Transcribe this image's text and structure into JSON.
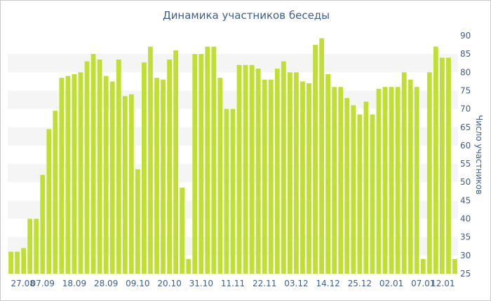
{
  "chart_data": {
    "type": "bar",
    "title": "Динамика участников беседы",
    "ylabel": "Число участников",
    "xlabel": "",
    "ylim": [
      25,
      90
    ],
    "yticks": [
      25,
      30,
      35,
      40,
      45,
      50,
      55,
      60,
      65,
      70,
      75,
      80,
      85,
      90
    ],
    "grid": "horizontal alternating bands",
    "y_axis_position": "right",
    "colors": {
      "bar": "#bfdf33",
      "band": "#f5f5f5",
      "text": "#3e5e8c"
    },
    "x_tick_labels": [
      {
        "index": 0,
        "label": "27.08"
      },
      {
        "index": 5,
        "label": "07.09"
      },
      {
        "index": 10,
        "label": "18.09"
      },
      {
        "index": 15,
        "label": "28.09"
      },
      {
        "index": 20,
        "label": "09.10"
      },
      {
        "index": 25,
        "label": "20.10"
      },
      {
        "index": 30,
        "label": "31.10"
      },
      {
        "index": 35,
        "label": "11.11"
      },
      {
        "index": 40,
        "label": "22.11"
      },
      {
        "index": 45,
        "label": "03.12"
      },
      {
        "index": 50,
        "label": "14.12"
      },
      {
        "index": 55,
        "label": "25.12"
      },
      {
        "index": 60,
        "label": "02.01"
      },
      {
        "index": 65,
        "label": "07.01"
      },
      {
        "index": 70,
        "label": "12.01"
      }
    ],
    "values": [
      31,
      31,
      32,
      40,
      40,
      52,
      64.5,
      69.5,
      78.5,
      79,
      79.5,
      80,
      83,
      85,
      83.5,
      79,
      77.5,
      83.5,
      73.5,
      74,
      53.5,
      82.7,
      87,
      78.5,
      78,
      83.5,
      86,
      48.5,
      29,
      85,
      85,
      87,
      87,
      78.5,
      70,
      70,
      82,
      82,
      82,
      81,
      78,
      78,
      81,
      83,
      80,
      80,
      77.5,
      77,
      87.5,
      89.3,
      79.5,
      76,
      76,
      73,
      71,
      68.5,
      72,
      68.5,
      75.5,
      76,
      76,
      76,
      80,
      78,
      76,
      29,
      80,
      87,
      84,
      84,
      29
    ]
  }
}
